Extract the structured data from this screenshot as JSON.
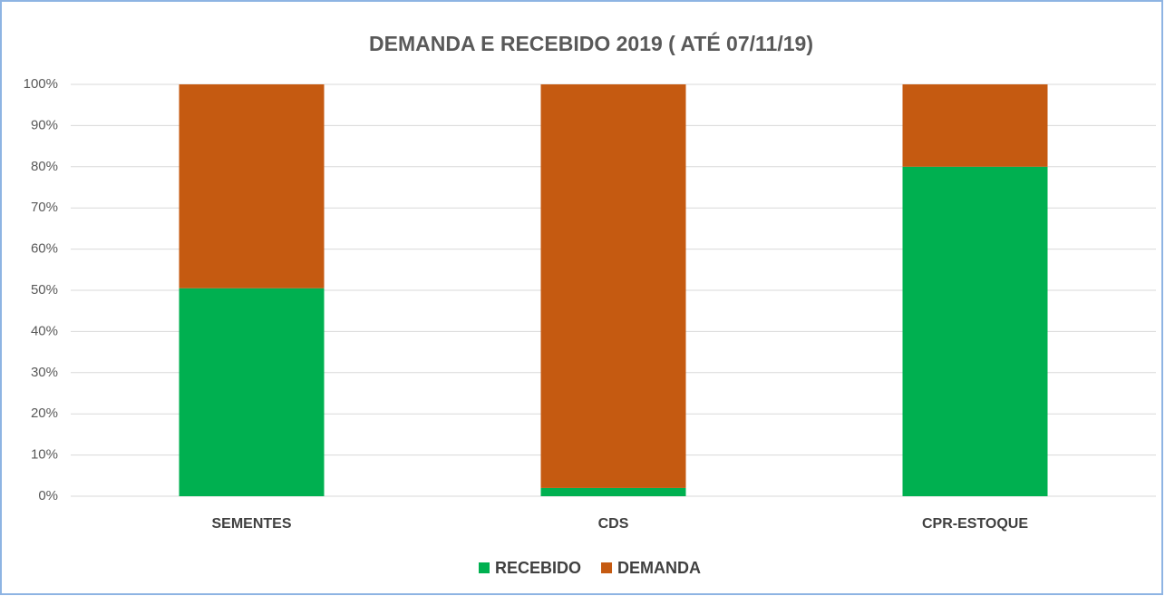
{
  "chart_data": {
    "type": "bar",
    "stacked": true,
    "title": "DEMANDA E RECEBIDO 2019 ( ATÉ 07/11/19)",
    "categories": [
      "SEMENTES",
      "CDS",
      "CPR-ESTOQUE"
    ],
    "series": [
      {
        "name": "RECEBIDO",
        "color": "#00b050",
        "values": [
          50.5,
          2,
          80
        ]
      },
      {
        "name": "DEMANDA",
        "color": "#c55a11",
        "values": [
          49.5,
          98,
          20
        ]
      }
    ],
    "ylim": [
      0,
      100
    ],
    "yticks": [
      {
        "value": 0,
        "label": "0%"
      },
      {
        "value": 10,
        "label": "10%"
      },
      {
        "value": 20,
        "label": "20%"
      },
      {
        "value": 30,
        "label": "30%"
      },
      {
        "value": 40,
        "label": "40%"
      },
      {
        "value": 50,
        "label": "50%"
      },
      {
        "value": 60,
        "label": "60%"
      },
      {
        "value": 70,
        "label": "70%"
      },
      {
        "value": 80,
        "label": "80%"
      },
      {
        "value": 90,
        "label": "90%"
      },
      {
        "value": 100,
        "label": "100%"
      }
    ],
    "grid": true,
    "legend": "bottom"
  }
}
